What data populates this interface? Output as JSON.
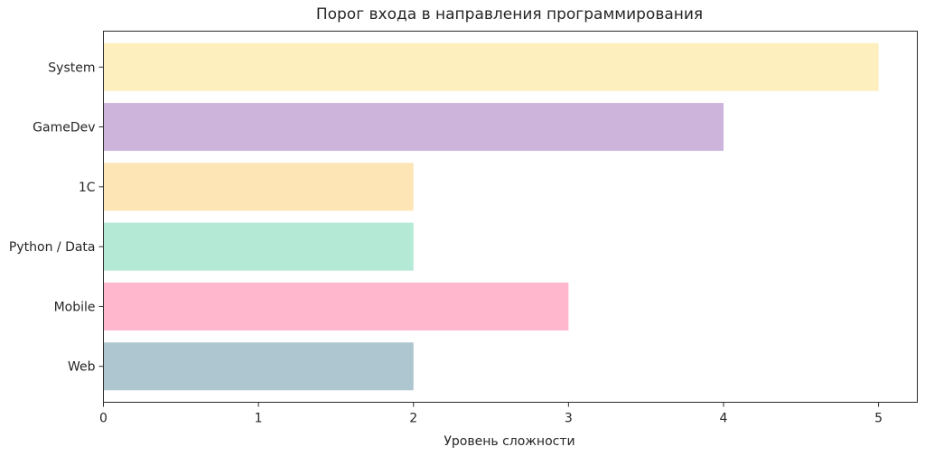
{
  "chart_data": {
    "type": "bar",
    "orientation": "horizontal",
    "title": "Порог входа в направления программирования",
    "xlabel": "Уровень сложности",
    "ylabel": "",
    "categories": [
      "Web",
      "Mobile",
      "Python / Data",
      "1С",
      "GameDev",
      "System"
    ],
    "values": [
      2,
      3,
      2,
      2,
      4,
      5
    ],
    "colors": [
      "#aec6cf",
      "#ffb7ce",
      "#b4e9d6",
      "#fde5b6",
      "#cdb4db",
      "#fdefbe"
    ],
    "xlim": [
      0,
      5.25
    ],
    "xticks": [
      0,
      1,
      2,
      3,
      4,
      5
    ],
    "grid": false
  }
}
